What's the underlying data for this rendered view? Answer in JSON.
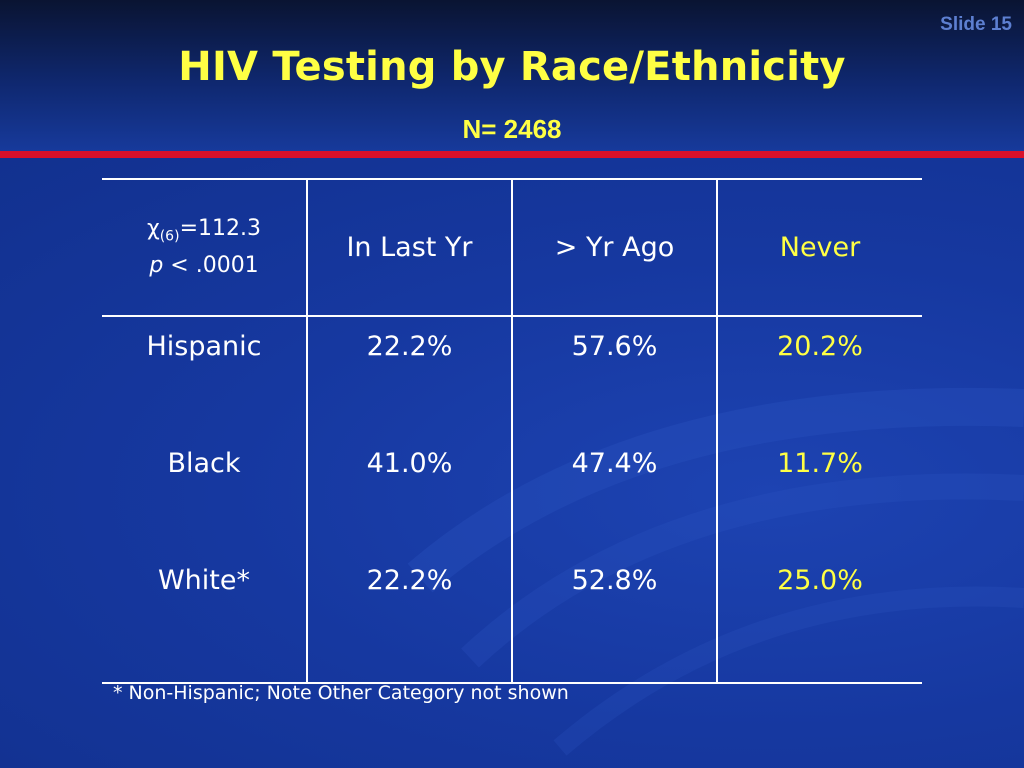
{
  "slide": {
    "number_label": "Slide 15",
    "title": "HIV Testing by Race/Ethnicity",
    "subtitle": "N= 2468"
  },
  "table": {
    "stat": {
      "chi_symbol": "χ",
      "df": "(6)",
      "chi_value": "=112.3",
      "p_symbol": "p",
      "p_value": " < .0001"
    },
    "columns": [
      "In Last Yr",
      "> Yr Ago",
      "Never"
    ],
    "rows": [
      {
        "label": "Hispanic",
        "values": [
          "22.2%",
          "57.6%",
          "20.2%"
        ]
      },
      {
        "label": "Black",
        "values": [
          "41.0%",
          "47.4%",
          "11.7%"
        ]
      },
      {
        "label": "White*",
        "values": [
          "22.2%",
          "52.8%",
          "25.0%"
        ]
      }
    ]
  },
  "footnote": "* Non-Hispanic; Note Other Category not shown",
  "colors": {
    "background": "#1a3a9e",
    "title": "#ffff44",
    "rule": "#d8102a",
    "slide_number": "#5d7fd1",
    "highlight_column": "#ffff44"
  }
}
